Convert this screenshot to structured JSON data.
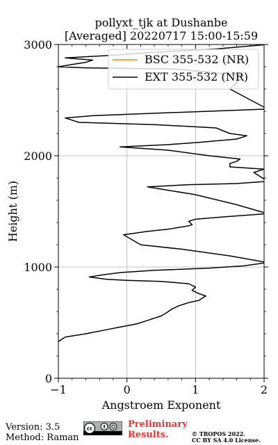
{
  "chart_data": {
    "type": "line",
    "title": "pollyxt_tjk at Dushanbe",
    "subtitle": "[Averaged] 20220717 15:00-15:59",
    "xlabel": "Angstroem Exponent",
    "ylabel": "Height (m)",
    "xlim": [
      -1,
      2
    ],
    "ylim": [
      0,
      3000
    ],
    "xticks": [
      "−1",
      "0",
      "1",
      "2"
    ],
    "yticks": [
      "0",
      "1000",
      "2000",
      "3000"
    ],
    "grid": true,
    "legend_position": "top-right",
    "series": [
      {
        "name": "BSC 355-532 (NR)",
        "color": "#ff7f0e",
        "points": []
      },
      {
        "name": "EXT 355-532 (NR)",
        "color": "#000000",
        "points": [
          [
            -1.05,
            300
          ],
          [
            -1.0,
            330
          ],
          [
            -0.9,
            370
          ],
          [
            -0.6,
            400
          ],
          [
            -0.35,
            430
          ],
          [
            -0.1,
            460
          ],
          [
            0.15,
            490
          ],
          [
            0.3,
            520
          ],
          [
            0.5,
            560
          ],
          [
            0.58,
            590
          ],
          [
            0.65,
            620
          ],
          [
            0.75,
            650
          ],
          [
            0.9,
            680
          ],
          [
            1.05,
            700
          ],
          [
            1.1,
            720
          ],
          [
            1.15,
            740
          ],
          [
            1.05,
            760
          ],
          [
            0.95,
            790
          ],
          [
            1.0,
            820
          ],
          [
            0.9,
            850
          ],
          [
            0.5,
            870
          ],
          [
            0.0,
            880
          ],
          [
            -0.3,
            890
          ],
          [
            -0.55,
            910
          ],
          [
            -0.35,
            930
          ],
          [
            -0.1,
            950
          ],
          [
            0.4,
            970
          ],
          [
            1.2,
            990
          ],
          [
            1.7,
            1010
          ],
          [
            2.05,
            1040
          ],
          [
            1.5,
            1100
          ],
          [
            0.8,
            1160
          ],
          [
            0.2,
            1200
          ],
          [
            -0.05,
            1290
          ],
          [
            0.3,
            1320
          ],
          [
            0.6,
            1340
          ],
          [
            0.9,
            1370
          ],
          [
            0.95,
            1380
          ],
          [
            0.9,
            1410
          ],
          [
            1.0,
            1430
          ],
          [
            1.4,
            1450
          ],
          [
            2.05,
            1480
          ],
          [
            1.6,
            1560
          ],
          [
            1.0,
            1650
          ],
          [
            0.3,
            1720
          ],
          [
            0.9,
            1740
          ],
          [
            1.6,
            1750
          ],
          [
            2.05,
            1770
          ],
          [
            1.85,
            1850
          ],
          [
            2.0,
            1880
          ],
          [
            1.5,
            1900
          ],
          [
            1.5,
            1930
          ],
          [
            1.6,
            1950
          ],
          [
            1.65,
            1970
          ],
          [
            1.2,
            2000
          ],
          [
            0.6,
            2050
          ],
          [
            -0.1,
            2080
          ],
          [
            0.6,
            2100
          ],
          [
            1.05,
            2120
          ],
          [
            1.6,
            2150
          ],
          [
            1.75,
            2180
          ],
          [
            1.5,
            2200
          ],
          [
            1.3,
            2250
          ],
          [
            0.4,
            2280
          ],
          [
            -0.7,
            2300
          ],
          [
            -0.8,
            2320
          ],
          [
            -0.9,
            2340
          ],
          [
            -0.5,
            2360
          ],
          [
            0.3,
            2380
          ],
          [
            1.2,
            2400
          ],
          [
            2.05,
            2420
          ],
          [
            1.5,
            2600
          ],
          [
            1.7,
            2720
          ],
          [
            0.7,
            2780
          ],
          [
            -0.6,
            2790
          ],
          [
            -1.0,
            2800
          ],
          [
            -0.8,
            2820
          ],
          [
            -0.6,
            2840
          ],
          [
            -0.5,
            2860
          ],
          [
            -0.9,
            2880
          ],
          [
            -0.3,
            2900
          ],
          [
            0.4,
            2930
          ],
          [
            1.3,
            2960
          ],
          [
            2.05,
            3000
          ]
        ]
      }
    ]
  },
  "footer": {
    "version": "Version: 3.5",
    "method": "Method: Raman",
    "preliminary": [
      "Preliminary",
      "Results."
    ],
    "copyright": [
      "© TROPOS 2022.",
      "CC BY SA 4.0 License."
    ]
  }
}
